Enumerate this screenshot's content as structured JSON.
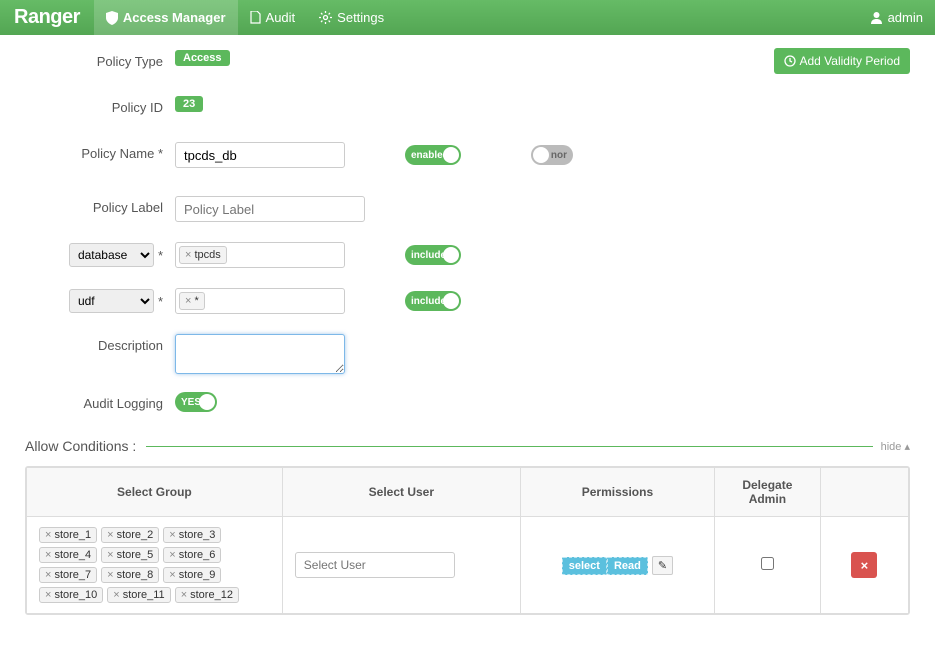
{
  "brand": "Ranger",
  "nav": {
    "access_manager": "Access Manager",
    "audit": "Audit",
    "settings": "Settings",
    "user": "admin"
  },
  "add_validity_btn": "Add Validity Period",
  "policy": {
    "type_label": "Policy Type",
    "type_value": "Access",
    "id_label": "Policy ID",
    "id_value": "23",
    "name_label": "Policy Name *",
    "name_value": "tpcds_db",
    "label_label": "Policy Label",
    "label_placeholder": "Policy Label",
    "desc_label": "Description",
    "audit_label": "Audit Logging",
    "enabled_text": "enabled",
    "include_text": "include",
    "yes_text": "YES",
    "nor_text": "nor"
  },
  "resources": {
    "database": {
      "label": "database",
      "tag": "tpcds"
    },
    "udf": {
      "label": "udf",
      "tag": "*"
    }
  },
  "allow": {
    "title": "Allow Conditions :",
    "hide": "hide",
    "columns": {
      "group": "Select Group",
      "user": "Select User",
      "perms": "Permissions",
      "delegate": "Delegate Admin"
    },
    "user_placeholder": "Select User",
    "groups": [
      "store_1",
      "store_2",
      "store_3",
      "store_4",
      "store_5",
      "store_6",
      "store_7",
      "store_8",
      "store_9",
      "store_10",
      "store_11",
      "store_12"
    ],
    "permissions": [
      {
        "label": "select",
        "color": "#5bc0de"
      },
      {
        "label": "Read",
        "color": "#5bc0de"
      }
    ]
  },
  "colors": {
    "green": "#5cb85c",
    "teal": "#5bc0de",
    "red": "#d9534f"
  }
}
